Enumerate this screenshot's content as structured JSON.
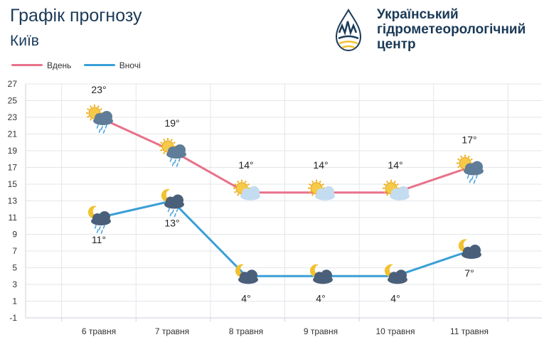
{
  "header": {
    "title": "Графік прогнозу",
    "city": "Київ"
  },
  "logo": {
    "line1": "Український",
    "line2": "гідрометеорологічний",
    "line3": "центр"
  },
  "colors": {
    "day": "#e8718a",
    "night": "#3a9fd6",
    "grid": "#e3e6ea",
    "text": "#1b3a57"
  },
  "chart_data": {
    "type": "line",
    "categories": [
      "6 травня",
      "7 травня",
      "8 травня",
      "9 травня",
      "10 травня",
      "11 травня"
    ],
    "series": [
      {
        "name": "Вдень",
        "values": [
          23,
          19,
          14,
          14,
          14,
          17
        ],
        "labels": [
          "23°",
          "19°",
          "14°",
          "14°",
          "14°",
          "17°"
        ],
        "icons": [
          "sun-cloud-rain-icon",
          "sun-cloud-rain-icon",
          "sun-cloud-icon",
          "sun-cloud-icon",
          "sun-cloud-icon",
          "sun-cloud-rain-icon"
        ]
      },
      {
        "name": "Вночі",
        "values": [
          11,
          13,
          4,
          4,
          4,
          7
        ],
        "labels": [
          "11°",
          "13°",
          "4°",
          "4°",
          "4°",
          "7°"
        ],
        "icons": [
          "moon-cloud-rain-icon",
          "moon-cloud-rain-icon",
          "moon-cloud-icon",
          "moon-cloud-icon",
          "moon-cloud-icon",
          "moon-cloud-icon"
        ]
      }
    ],
    "yticks": [
      "27",
      "25",
      "23",
      "21",
      "19",
      "17",
      "15",
      "13",
      "11",
      "9",
      "7",
      "5",
      "3",
      "1",
      "-1"
    ],
    "ylim": [
      -1,
      27
    ],
    "grid": true,
    "legend_position": "top-left"
  }
}
